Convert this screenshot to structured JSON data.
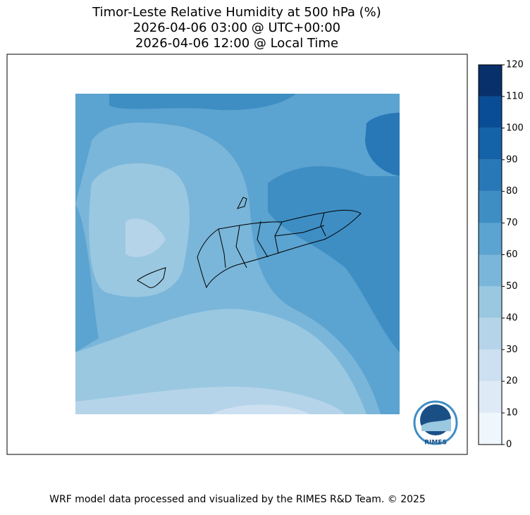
{
  "header": {
    "title_lines": [
      "Timor-Leste Relative Humidity at 500 hPa (%)",
      "2026-04-06 03:00 @ UTC+00:00",
      "2026-04-06 12:00 @ Local Time"
    ]
  },
  "colorbar": {
    "ticks": [
      0,
      10,
      20,
      30,
      40,
      50,
      60,
      70,
      80,
      90,
      100,
      110,
      120
    ],
    "colors": [
      "#eff6fc",
      "#deebf7",
      "#cde0f1",
      "#b6d4e9",
      "#9ac8e1",
      "#7ab6d9",
      "#5ba3d0",
      "#3e8ec4",
      "#2878b8",
      "#1462a8",
      "#084d96",
      "#08306b"
    ]
  },
  "logo": {
    "text": "RIMES"
  },
  "footer": {
    "text": "WRF model data processed and visualized by the RIMES R&D Team. © 2025"
  }
}
